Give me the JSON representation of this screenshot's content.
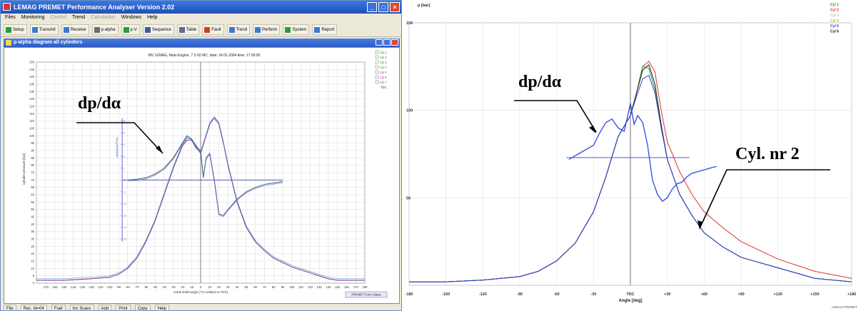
{
  "window": {
    "title": "LEMAG PREMET Performance Analyser Version 2.02",
    "menus": [
      "Files",
      "Monitoring",
      "Control",
      "Trend",
      "Calculation",
      "Windows",
      "Help"
    ],
    "toolbar": [
      "Setup",
      "Transmit",
      "Receive",
      "p-alpha",
      "p-V",
      "Sequence",
      "Table",
      "Fault",
      "Trend",
      "Perform",
      "System",
      "Report"
    ],
    "subwindow_title": "p-alpha diagram all cylinders",
    "status": [
      "File",
      "Rec. Id=04",
      "Fuel",
      "Inc Scavs",
      "Add",
      "Print",
      "Copy",
      "Help"
    ],
    "premet_button": "PREMET Form Status"
  },
  "chart_data": [
    {
      "type": "line",
      "title": "MV LEMAG, Main Engine, 7 S 60 MC,  date: 24.01.2004  time: 17:00:00",
      "xlabel": "crank shaft angle [°CA related to TDC]",
      "ylabel": "cylinder pressure [bar]",
      "ylabel2": "dp/da [bar/°CA]",
      "xlim": [
        -180,
        180
      ],
      "ylim": [
        0,
        150
      ],
      "x_ticks": [
        -170,
        -160,
        -150,
        -140,
        -130,
        -120,
        -110,
        -100,
        -90,
        -80,
        -70,
        -60,
        -50,
        -40,
        -30,
        -20,
        -10,
        0,
        10,
        20,
        30,
        40,
        50,
        60,
        70,
        80,
        90,
        100,
        110,
        120,
        130,
        140,
        150,
        160,
        170,
        180
      ],
      "y_ticks": [
        0,
        5,
        10,
        15,
        20,
        25,
        30,
        35,
        40,
        45,
        50,
        55,
        60,
        65,
        70,
        75,
        80,
        85,
        90,
        95,
        100,
        105,
        110,
        115,
        120,
        125,
        130,
        135,
        140,
        145,
        150
      ],
      "y2_ticks": [
        5,
        4,
        3,
        2,
        1,
        0,
        -1,
        -2,
        -3,
        -4,
        -5
      ],
      "legend": [
        "Cyl 1",
        "Cyl 2",
        "Cyl 3",
        "Cyl 4",
        "Cyl 5",
        "Cyl 6",
        "Cyl 7"
      ],
      "legend_colors": [
        "#2a8a2a",
        "#2a8a2a",
        "#2a8a2a",
        "#2a8a2a",
        "#c02ac0",
        "#c02ac0",
        "#2a8a2a"
      ],
      "legend_extra": "TDC",
      "grid": true,
      "annotation": "dp/dα",
      "series": [
        {
          "color": "#8a3aaa",
          "x": [
            -180,
            -150,
            -120,
            -100,
            -90,
            -80,
            -70,
            -60,
            -50,
            -40,
            -30,
            -20,
            -15,
            -10,
            -5,
            0,
            5,
            10,
            15,
            20,
            25,
            30,
            40,
            50,
            60,
            70,
            80,
            90,
            100,
            110,
            120,
            130,
            140,
            150,
            160,
            170,
            180
          ],
          "y": [
            2,
            2,
            3,
            4,
            6,
            10,
            17,
            28,
            42,
            60,
            78,
            93,
            97,
            97,
            93,
            88,
            98,
            108,
            112,
            108,
            95,
            80,
            55,
            38,
            28,
            22,
            17,
            14,
            11,
            9,
            7,
            5,
            3,
            2,
            2,
            2,
            2
          ]
        },
        {
          "color": "#3a7a8a",
          "x": [
            -80,
            -70,
            -60,
            -50,
            -40,
            -30,
            -20,
            -15,
            -10,
            -5,
            0,
            3,
            6,
            10,
            15,
            20,
            25,
            30,
            40,
            50,
            60,
            70,
            80,
            90
          ],
          "y": [
            70,
            70.5,
            71.5,
            74,
            78,
            85,
            95,
            100,
            98,
            92,
            90,
            72,
            85,
            88,
            70,
            47,
            46,
            50,
            57,
            62,
            65,
            67,
            68,
            69
          ]
        }
      ]
    },
    {
      "type": "line",
      "title": "",
      "xlabel": "Angle [deg]",
      "ylabel": "p [bar]",
      "xlim": [
        -180,
        180
      ],
      "ylim": [
        0,
        150
      ],
      "x_ticks": [
        -180,
        -150,
        -120,
        -90,
        -60,
        -30,
        0,
        30,
        60,
        90,
        120,
        150,
        180
      ],
      "x_tick_labels": [
        "-180",
        "-150",
        "-120",
        "-90",
        "-60",
        "-30",
        "TDC",
        "+30",
        "+60",
        "+90",
        "+120",
        "+150",
        "+180"
      ],
      "y_ticks": [
        0,
        50,
        100,
        150
      ],
      "y_tick_labels": [
        "",
        "50",
        "100",
        "150"
      ],
      "legend": [
        "Cyl 1",
        "Cyl 2",
        "Cyl 3",
        "Cyl 4",
        "Cyl 5",
        "Cyl 6"
      ],
      "legend_colors": [
        "#2fa02f",
        "#e03030",
        "#c8c8c8",
        "#d2b400",
        "#3040d0",
        "#202020"
      ],
      "grid": true,
      "footer_text": "LEMAG-PREMET",
      "annotations": [
        "dp/dα",
        "Cyl. nr 2"
      ],
      "series": [
        {
          "name": "Cyl 2",
          "color": "#e03030",
          "x": [
            -180,
            -150,
            -120,
            -90,
            -75,
            -60,
            -45,
            -30,
            -20,
            -10,
            0,
            5,
            10,
            15,
            20,
            25,
            30,
            40,
            50,
            60,
            75,
            90,
            120,
            150,
            180
          ],
          "y": [
            2,
            2,
            3,
            5,
            8,
            14,
            24,
            42,
            62,
            85,
            97,
            110,
            125,
            128,
            122,
            100,
            82,
            65,
            52,
            42,
            33,
            25,
            15,
            8,
            4
          ]
        },
        {
          "name": "Cyl 1",
          "color": "#2fa02f",
          "x": [
            -180,
            -150,
            -120,
            -90,
            -75,
            -60,
            -45,
            -30,
            -20,
            -10,
            0,
            5,
            10,
            15,
            20,
            25,
            30,
            40,
            50,
            60,
            75,
            90,
            100,
            120,
            150,
            180
          ],
          "y": [
            2,
            2,
            3,
            5,
            8,
            14,
            24,
            42,
            62,
            85,
            97,
            110,
            125,
            124,
            112,
            90,
            72,
            52,
            40,
            30,
            22,
            16,
            14,
            10,
            4,
            2
          ]
        },
        {
          "name": "Cyl 6",
          "color": "#202020",
          "x": [
            -180,
            -150,
            -120,
            -90,
            -75,
            -60,
            -45,
            -30,
            -20,
            -10,
            0,
            5,
            10,
            15,
            20,
            25,
            30,
            40,
            50,
            60,
            75,
            90,
            100,
            120,
            150,
            180
          ],
          "y": [
            2,
            2,
            3,
            5,
            8,
            14,
            24,
            42,
            62,
            85,
            97,
            110,
            123,
            126,
            115,
            92,
            72,
            52,
            40,
            30,
            22,
            16,
            14,
            10,
            4,
            2
          ]
        },
        {
          "name": "Cyl 5",
          "color": "#3040d0",
          "x": [
            -180,
            -150,
            -120,
            -90,
            -75,
            -60,
            -45,
            -30,
            -20,
            -10,
            0,
            5,
            10,
            15,
            20,
            25,
            30,
            40,
            50,
            60,
            75,
            90,
            100,
            120,
            150,
            180
          ],
          "y": [
            2,
            2,
            3,
            5,
            8,
            14,
            24,
            42,
            62,
            85,
            97,
            108,
            118,
            120,
            110,
            90,
            72,
            52,
            40,
            30,
            22,
            16,
            14,
            10,
            4,
            2
          ]
        },
        {
          "name": "dp/dα",
          "color": "#2a4ae0",
          "x": [
            -50,
            -40,
            -30,
            -25,
            -20,
            -15,
            -10,
            -5,
            0,
            3,
            6,
            10,
            14,
            18,
            22,
            26,
            30,
            34,
            38,
            42,
            46,
            50,
            55,
            60,
            65,
            70
          ],
          "y": [
            72,
            76,
            80,
            87,
            93,
            95,
            90,
            88,
            104,
            92,
            97,
            93,
            80,
            60,
            52,
            48,
            50,
            55,
            58,
            59,
            62,
            64,
            65,
            66,
            67,
            68
          ]
        }
      ]
    }
  ]
}
